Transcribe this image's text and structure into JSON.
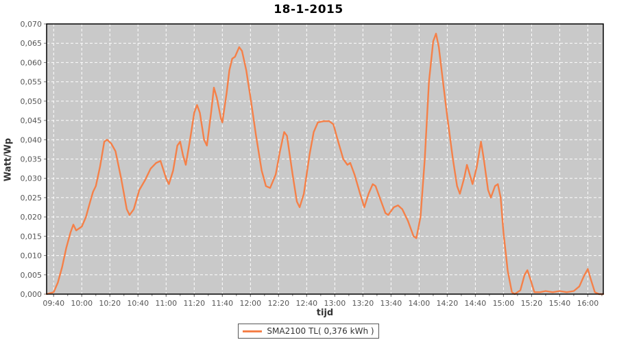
{
  "title": "18-1-2015",
  "colors": {
    "line": "#f58048",
    "plot_background": "#c9c9c9",
    "grid": "#ffffff",
    "plot_border": "#000000",
    "tick": "#777777",
    "tick_label": "#555555",
    "axis_title": "#333333",
    "title_color": "#000000",
    "legend_border": "#555555"
  },
  "legend": {
    "label": "SMA2100 TL( 0,376 kWh )"
  },
  "chart_data": {
    "type": "line",
    "title": "18-1-2015",
    "xlabel": "tijd",
    "ylabel": "Watt/Wp",
    "x_domain": [
      "09:35",
      "16:11"
    ],
    "ylim": [
      0,
      0.07
    ],
    "ytick_step": 0.005,
    "ytick_labels": [
      "0,000",
      "0,005",
      "0,010",
      "0,015",
      "0,020",
      "0,025",
      "0,030",
      "0,035",
      "0,040",
      "0,045",
      "0,050",
      "0,055",
      "0,060",
      "0,065",
      "0,070"
    ],
    "xtick_labels": [
      "09:40",
      "10:00",
      "10:20",
      "10:40",
      "11:00",
      "11:20",
      "11:40",
      "12:00",
      "12:20",
      "12:40",
      "13:00",
      "13:20",
      "13:40",
      "14:00",
      "14:20",
      "14:40",
      "15:00",
      "15:20",
      "15:40",
      "16:00"
    ],
    "grid": "white dashed, both axes",
    "legend_position": "bottom-center",
    "series": [
      {
        "name": "SMA2100 TL( 0,376 kWh )",
        "color": "#f58048",
        "points": [
          [
            "09:35",
            0.0
          ],
          [
            "09:40",
            0.0005
          ],
          [
            "09:43",
            0.003
          ],
          [
            "09:46",
            0.007
          ],
          [
            "09:49",
            0.012
          ],
          [
            "09:52",
            0.016
          ],
          [
            "09:54",
            0.018
          ],
          [
            "09:56",
            0.0165
          ],
          [
            "10:00",
            0.0175
          ],
          [
            "10:03",
            0.02
          ],
          [
            "10:06",
            0.024
          ],
          [
            "10:08",
            0.0265
          ],
          [
            "10:10",
            0.028
          ],
          [
            "10:13",
            0.033
          ],
          [
            "10:16",
            0.0395
          ],
          [
            "10:18",
            0.04
          ],
          [
            "10:21",
            0.039
          ],
          [
            "10:24",
            0.037
          ],
          [
            "10:28",
            0.03
          ],
          [
            "10:32",
            0.022
          ],
          [
            "10:34",
            0.0205
          ],
          [
            "10:37",
            0.022
          ],
          [
            "10:41",
            0.027
          ],
          [
            "10:45",
            0.0295
          ],
          [
            "10:49",
            0.0325
          ],
          [
            "10:53",
            0.034
          ],
          [
            "10:56",
            0.0345
          ],
          [
            "11:00",
            0.03
          ],
          [
            "11:02",
            0.0285
          ],
          [
            "11:05",
            0.032
          ],
          [
            "11:08",
            0.0385
          ],
          [
            "11:10",
            0.0395
          ],
          [
            "11:12",
            0.036
          ],
          [
            "11:14",
            0.0335
          ],
          [
            "11:17",
            0.04
          ],
          [
            "11:20",
            0.047
          ],
          [
            "11:22",
            0.049
          ],
          [
            "11:24",
            0.047
          ],
          [
            "11:27",
            0.04
          ],
          [
            "11:29",
            0.0385
          ],
          [
            "11:32",
            0.047
          ],
          [
            "11:34",
            0.0535
          ],
          [
            "11:36",
            0.051
          ],
          [
            "11:39",
            0.0455
          ],
          [
            "11:40",
            0.0445
          ],
          [
            "11:43",
            0.052
          ],
          [
            "11:45",
            0.058
          ],
          [
            "11:47",
            0.061
          ],
          [
            "11:49",
            0.0615
          ],
          [
            "11:52",
            0.064
          ],
          [
            "11:54",
            0.063
          ],
          [
            "11:57",
            0.058
          ],
          [
            "12:00",
            0.051
          ],
          [
            "12:04",
            0.041
          ],
          [
            "12:08",
            0.032
          ],
          [
            "12:11",
            0.028
          ],
          [
            "12:14",
            0.0275
          ],
          [
            "12:18",
            0.031
          ],
          [
            "12:21",
            0.037
          ],
          [
            "12:24",
            0.042
          ],
          [
            "12:26",
            0.041
          ],
          [
            "12:30",
            0.031
          ],
          [
            "12:33",
            0.024
          ],
          [
            "12:35",
            0.0225
          ],
          [
            "12:38",
            0.026
          ],
          [
            "12:42",
            0.036
          ],
          [
            "12:45",
            0.042
          ],
          [
            "12:48",
            0.0445
          ],
          [
            "12:52",
            0.0448
          ],
          [
            "12:56",
            0.0448
          ],
          [
            "12:59",
            0.044
          ],
          [
            "13:02",
            0.04
          ],
          [
            "13:06",
            0.035
          ],
          [
            "13:09",
            0.0335
          ],
          [
            "13:11",
            0.034
          ],
          [
            "13:14",
            0.031
          ],
          [
            "13:18",
            0.026
          ],
          [
            "13:21",
            0.0225
          ],
          [
            "13:24",
            0.026
          ],
          [
            "13:27",
            0.0285
          ],
          [
            "13:29",
            0.028
          ],
          [
            "13:33",
            0.024
          ],
          [
            "13:36",
            0.021
          ],
          [
            "13:38",
            0.0205
          ],
          [
            "13:42",
            0.0225
          ],
          [
            "13:45",
            0.023
          ],
          [
            "13:48",
            0.022
          ],
          [
            "13:52",
            0.019
          ],
          [
            "13:56",
            0.015
          ],
          [
            "13:58",
            0.0145
          ],
          [
            "14:01",
            0.02
          ],
          [
            "14:04",
            0.035
          ],
          [
            "14:07",
            0.055
          ],
          [
            "14:10",
            0.0655
          ],
          [
            "14:12",
            0.0675
          ],
          [
            "14:14",
            0.064
          ],
          [
            "14:17",
            0.055
          ],
          [
            "14:20",
            0.046
          ],
          [
            "14:24",
            0.035
          ],
          [
            "14:27",
            0.028
          ],
          [
            "14:29",
            0.026
          ],
          [
            "14:32",
            0.03
          ],
          [
            "14:34",
            0.0335
          ],
          [
            "14:36",
            0.031
          ],
          [
            "14:38",
            0.0285
          ],
          [
            "14:41",
            0.033
          ],
          [
            "14:44",
            0.0395
          ],
          [
            "14:46",
            0.035
          ],
          [
            "14:49",
            0.027
          ],
          [
            "14:51",
            0.025
          ],
          [
            "14:54",
            0.028
          ],
          [
            "14:56",
            0.0285
          ],
          [
            "14:58",
            0.025
          ],
          [
            "15:00",
            0.016
          ],
          [
            "15:03",
            0.006
          ],
          [
            "15:06",
            0.0005
          ],
          [
            "15:08",
            0.0
          ],
          [
            "15:12",
            0.001
          ],
          [
            "15:15",
            0.005
          ],
          [
            "15:17",
            0.0062
          ],
          [
            "15:19",
            0.004
          ],
          [
            "15:22",
            0.0005
          ],
          [
            "15:26",
            0.0005
          ],
          [
            "15:30",
            0.0008
          ],
          [
            "15:35",
            0.0005
          ],
          [
            "15:40",
            0.0008
          ],
          [
            "15:45",
            0.0005
          ],
          [
            "15:50",
            0.0008
          ],
          [
            "15:54",
            0.002
          ],
          [
            "15:57",
            0.0045
          ],
          [
            "16:00",
            0.0065
          ],
          [
            "16:02",
            0.004
          ],
          [
            "16:05",
            0.0005
          ],
          [
            "16:08",
            0.0
          ],
          [
            "16:11",
            0.0
          ]
        ]
      }
    ]
  }
}
